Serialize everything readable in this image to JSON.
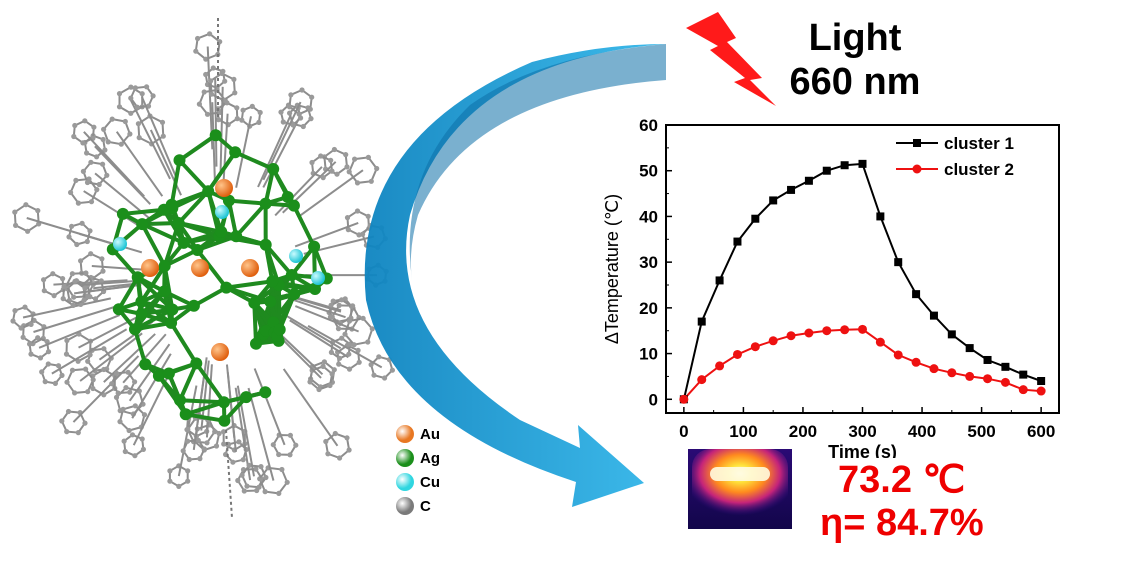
{
  "light": {
    "line1": "Light",
    "line2": "660 nm"
  },
  "result": {
    "temperature": "73.2 ℃",
    "efficiency": "η= 84.7%"
  },
  "element_legend": [
    {
      "symbol": "Au",
      "color": "#e87722"
    },
    {
      "symbol": "Ag",
      "color": "#1b8f1b"
    },
    {
      "symbol": "Cu",
      "color": "#2fd6e0"
    },
    {
      "symbol": "C",
      "color": "#7a7a7a"
    }
  ],
  "chart_data": {
    "type": "line",
    "xlabel": "Time (s)",
    "ylabel": "ΔTemperature (℃)",
    "xlim": [
      -30,
      630
    ],
    "ylim": [
      -3,
      60
    ],
    "xticks": [
      0,
      100,
      200,
      300,
      400,
      500,
      600
    ],
    "yticks": [
      0,
      10,
      20,
      30,
      40,
      50,
      60
    ],
    "legend_position": "top-right",
    "series": [
      {
        "name": "cluster 1",
        "color": "#000000",
        "marker": "square",
        "x": [
          0,
          30,
          60,
          90,
          120,
          150,
          180,
          210,
          240,
          270,
          300,
          330,
          360,
          390,
          420,
          450,
          480,
          510,
          540,
          570,
          600
        ],
        "y": [
          0,
          17,
          26,
          34.5,
          39.5,
          43.5,
          45.8,
          47.8,
          50,
          51.2,
          51.5,
          40,
          30,
          23,
          18.3,
          14.2,
          11.2,
          8.6,
          7.1,
          5.4,
          4
        ]
      },
      {
        "name": "cluster 2",
        "color": "#ee1111",
        "marker": "circle",
        "x": [
          0,
          30,
          60,
          90,
          120,
          150,
          180,
          210,
          240,
          270,
          300,
          330,
          360,
          390,
          420,
          450,
          480,
          510,
          540,
          570,
          600
        ],
        "y": [
          0,
          4.3,
          7.3,
          9.8,
          11.5,
          12.8,
          13.9,
          14.5,
          15,
          15.2,
          15.3,
          12.5,
          9.7,
          8.1,
          6.7,
          5.8,
          5,
          4.5,
          3.7,
          2.1,
          1.8
        ]
      }
    ]
  }
}
